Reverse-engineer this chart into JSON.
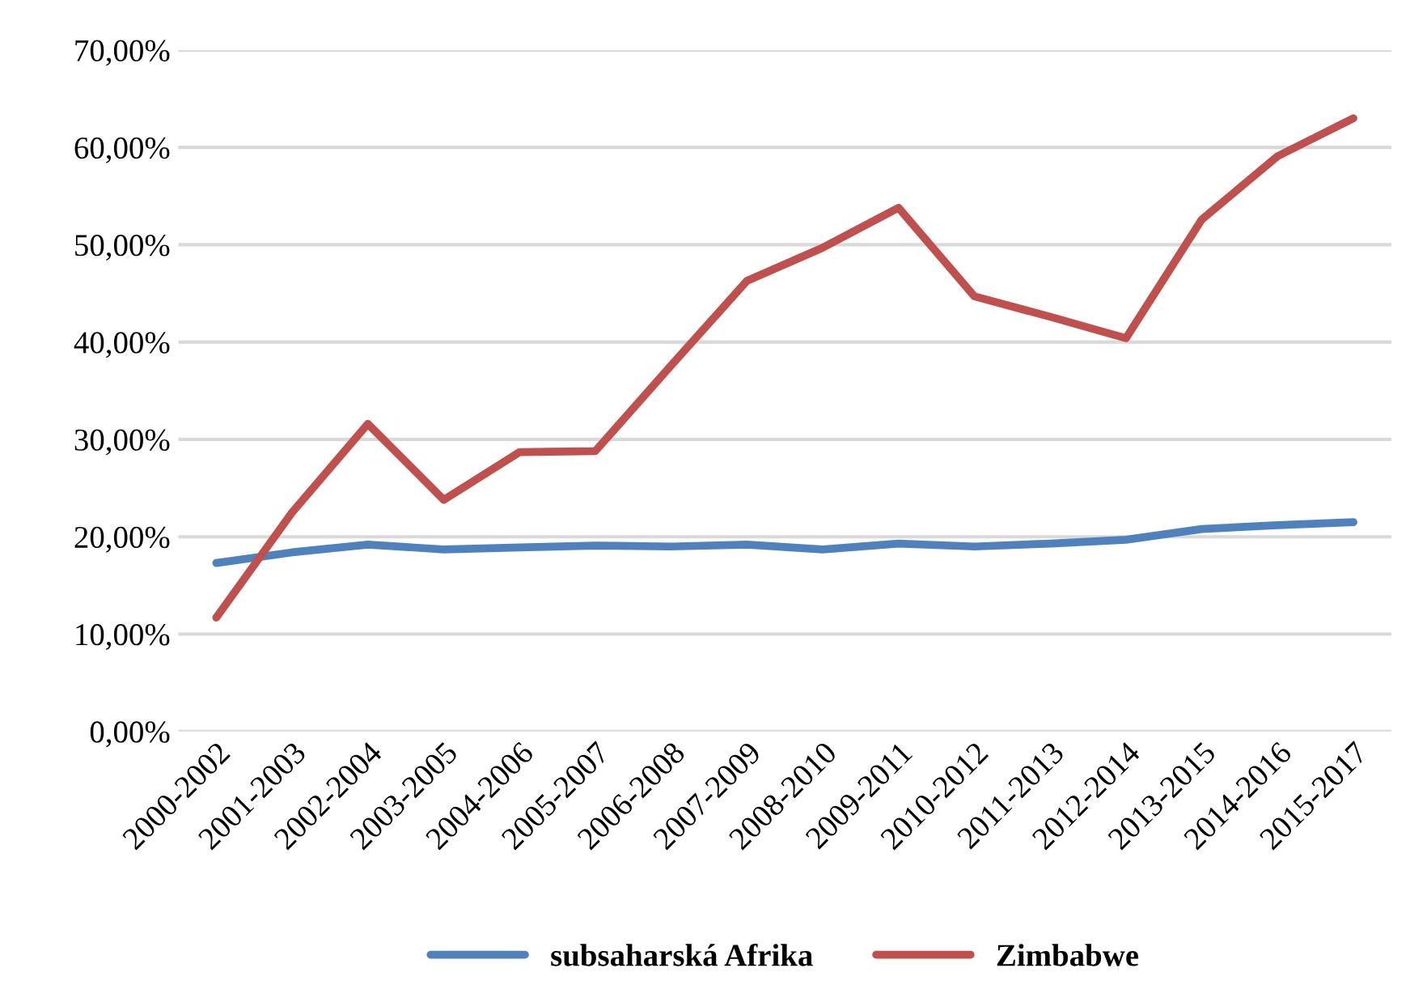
{
  "chart_data": {
    "type": "line",
    "categories": [
      "2000-2002",
      "2001-2003",
      "2002-2004",
      "2003-2005",
      "2004-2006",
      "2005-2007",
      "2006-2008",
      "2007-2009",
      "2008-2010",
      "2009-2011",
      "2010-2012",
      "2011-2013",
      "2012-2014",
      "2013-2015",
      "2014-2016",
      "2015-2017"
    ],
    "series": [
      {
        "name": "subsaharská Afrika",
        "color": "#4f81bd",
        "values": [
          17.3,
          18.4,
          19.2,
          18.7,
          18.9,
          19.1,
          19.0,
          19.2,
          18.7,
          19.3,
          19.0,
          19.3,
          19.7,
          20.8,
          21.2,
          21.5
        ]
      },
      {
        "name": "Zimbabwe",
        "color": "#c0504d",
        "values": [
          11.7,
          22.5,
          31.6,
          23.8,
          28.7,
          28.8,
          37.6,
          46.3,
          49.7,
          53.8,
          44.7,
          42.6,
          40.4,
          52.6,
          59.1,
          63.0
        ]
      }
    ],
    "ylim": [
      0,
      70
    ],
    "yticks": [
      {
        "value": 0,
        "label": "0,00%"
      },
      {
        "value": 10,
        "label": "10,00%"
      },
      {
        "value": 20,
        "label": "20,00%"
      },
      {
        "value": 30,
        "label": "30,00%"
      },
      {
        "value": 40,
        "label": "40,00%"
      },
      {
        "value": 50,
        "label": "50,00%"
      },
      {
        "value": 60,
        "label": "60,00%"
      },
      {
        "value": 70,
        "label": "70,00%"
      }
    ],
    "grid": "y",
    "legend": "bottom",
    "marker": "none",
    "line_style": "solid"
  }
}
